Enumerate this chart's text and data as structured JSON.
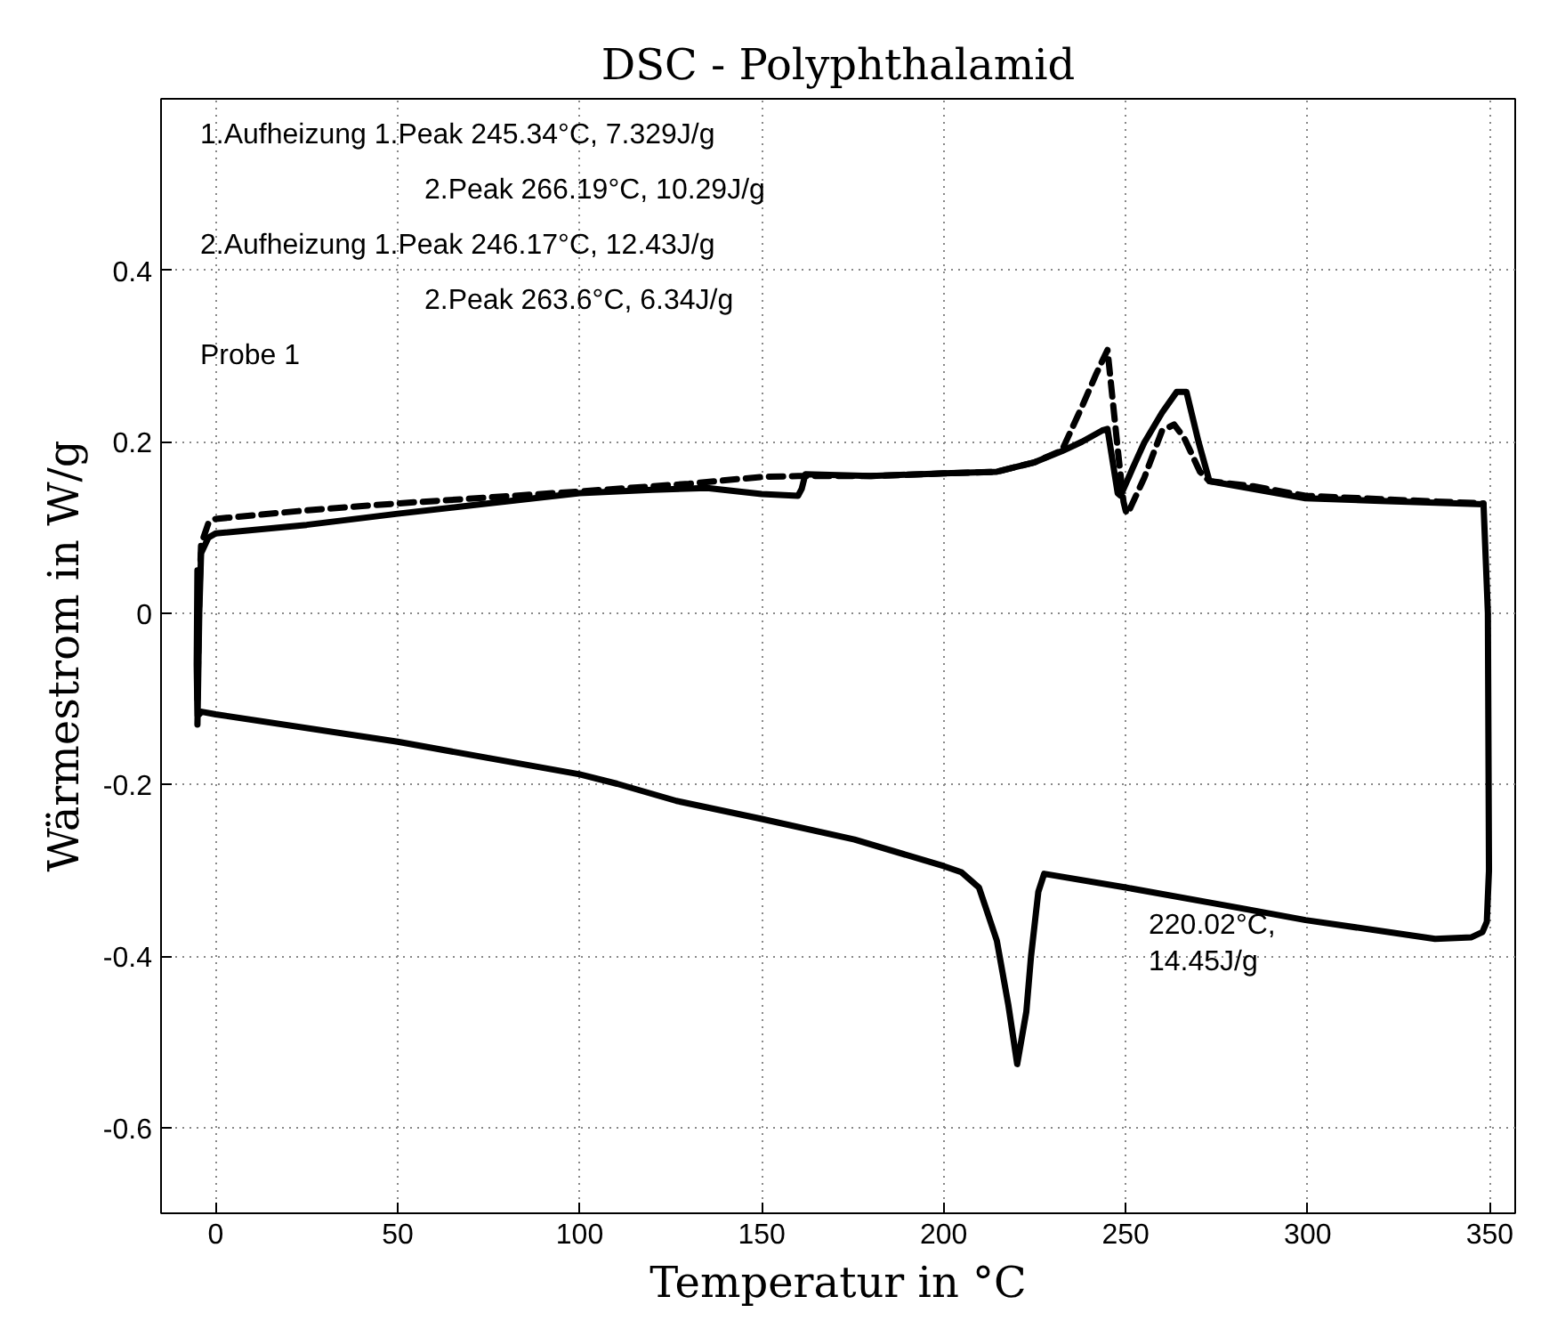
{
  "chart_data": {
    "type": "line",
    "title": "DSC - Polyphthalamid",
    "xlabel": "Temperatur in °C",
    "ylabel": "Wärmestrom in W/g",
    "xlim": [
      -15,
      357
    ],
    "ylim": [
      -0.7,
      0.6
    ],
    "xticks": [
      0,
      50,
      100,
      150,
      200,
      250,
      300,
      350
    ],
    "yticks": [
      -0.6,
      -0.4,
      -0.2,
      0,
      0.2,
      0.4
    ],
    "grid": true,
    "marker": "none",
    "series": [
      {
        "color": "#000000",
        "line_style": "solid",
        "x": [
          -5,
          -4.5,
          -4,
          -2,
          0,
          25,
          50,
          75,
          100,
          120,
          135,
          150,
          160,
          161,
          162,
          180,
          200,
          214.6,
          225,
          232.5,
          238,
          243.5,
          245,
          247.8,
          248.6,
          252,
          255.1,
          260,
          264,
          266.7,
          270,
          273,
          285,
          299.4,
          320,
          348.3,
          349.5,
          349.8,
          349.2,
          348,
          345,
          335,
          328.7,
          299.4,
          275,
          250,
          227.6,
          226,
          224,
          222.7,
          220.2,
          217.8,
          214.6,
          209.7,
          204.8,
          200,
          175.5,
          150,
          126.6,
          110.3,
          100,
          50,
          0,
          -3.8,
          -5,
          -5.2,
          -5
        ],
        "values": [
          -0.13,
          0.0,
          0.07,
          0.088,
          0.093,
          0.103,
          0.116,
          0.128,
          0.14,
          0.144,
          0.146,
          0.139,
          0.137,
          0.145,
          0.162,
          0.16,
          0.163,
          0.165,
          0.176,
          0.189,
          0.2,
          0.213,
          0.215,
          0.14,
          0.137,
          0.17,
          0.199,
          0.234,
          0.258,
          0.258,
          0.2,
          0.154,
          0.145,
          0.134,
          0.131,
          0.127,
          0.0,
          -0.3,
          -0.36,
          -0.372,
          -0.378,
          -0.38,
          -0.376,
          -0.358,
          -0.339,
          -0.32,
          -0.304,
          -0.325,
          -0.4,
          -0.465,
          -0.526,
          -0.458,
          -0.382,
          -0.32,
          -0.302,
          -0.295,
          -0.264,
          -0.24,
          -0.219,
          -0.199,
          -0.188,
          -0.15,
          -0.118,
          -0.115,
          -0.12,
          -0.06,
          0.05
        ]
      },
      {
        "color": "#000000",
        "line_style": "dashed",
        "x": [
          -5,
          -4.5,
          -4,
          -2,
          0,
          25,
          50,
          75,
          100,
          130,
          150,
          160,
          180,
          200,
          214.6,
          225,
          232.5,
          238,
          242,
          245,
          247.8,
          249.4,
          250.2,
          251.2,
          255.1,
          260,
          263.3,
          266,
          270.4,
          273,
          285,
          299.4,
          320,
          348.3
        ],
        "values": [
          -0.1,
          0.02,
          0.08,
          0.105,
          0.11,
          0.12,
          0.128,
          0.135,
          0.142,
          0.151,
          0.159,
          0.16,
          0.16,
          0.163,
          0.165,
          0.176,
          0.19,
          0.241,
          0.28,
          0.307,
          0.192,
          0.13,
          0.116,
          0.122,
          0.158,
          0.213,
          0.22,
          0.205,
          0.165,
          0.154,
          0.148,
          0.137,
          0.133,
          0.128
        ]
      }
    ],
    "annotations": [
      "1.Aufheizung 1.Peak 245.34°C, 7.329J/g",
      "2.Peak 266.19°C, 10.29J/g",
      "2.Aufheizung 1.Peak 246.17°C, 12.43J/g",
      "2.Peak 263.6°C, 6.34J/g",
      "Probe 1",
      "220.02°C,\n14.45J/g"
    ]
  }
}
